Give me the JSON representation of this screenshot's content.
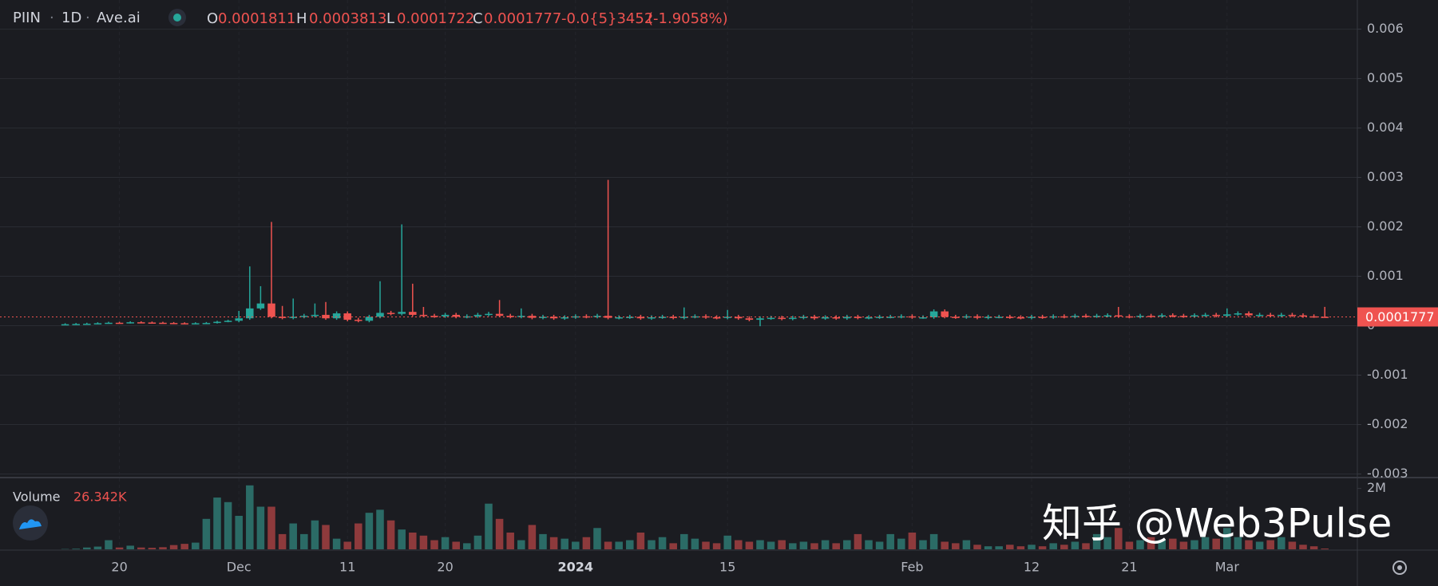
{
  "chart_data": {
    "type": "candlestick",
    "header": {
      "symbol": "PIIN",
      "interval": "1D",
      "source": "Ave.ai",
      "open_label": "O",
      "high_label": "H",
      "low_label": "L",
      "close_label": "C",
      "change": "-0.0{5}3452",
      "change_pct": "(-1.9058%)"
    },
    "up_color": "#26a69a",
    "down_color": "#ef5350",
    "up_volume_color": "#2b6b66",
    "down_volume_color": "#8e3a3c",
    "grid": true,
    "xlim": [
      -6,
      119
    ],
    "xticks": [
      {
        "value": 5,
        "label": "20"
      },
      {
        "value": 16,
        "label": "Dec"
      },
      {
        "value": 26,
        "label": "11"
      },
      {
        "value": 35,
        "label": "20"
      },
      {
        "value": 47,
        "label": "2024"
      },
      {
        "value": 61,
        "label": "15"
      },
      {
        "value": 78,
        "label": "Feb"
      },
      {
        "value": 89,
        "label": "12"
      },
      {
        "value": 98,
        "label": "21"
      },
      {
        "value": 107,
        "label": "Mar"
      }
    ],
    "ylim": [
      -0.00304,
      0.00659
    ],
    "yticks": [
      -0.003,
      -0.002,
      -0.001,
      0,
      0.001,
      0.002,
      0.003,
      0.004,
      0.005,
      0.006
    ],
    "open": [
      2.5e-05,
      3e-05,
      3.5e-05,
      4e-05,
      5e-05,
      6e-05,
      5.5e-05,
      7e-05,
      6.5e-05,
      6e-05,
      5.5e-05,
      5e-05,
      4.5e-05,
      5e-05,
      5.5e-05,
      8e-05,
      0.0001,
      0.00015,
      0.00035,
      0.00045,
      0.00018,
      0.00016,
      0.00018,
      0.0002,
      0.00022,
      0.00015,
      0.00025,
      0.00012,
      0.0001,
      0.00018,
      0.00026,
      0.00024,
      0.00028,
      0.00022,
      0.0002,
      0.00019,
      0.00022,
      0.00018,
      0.00019,
      0.00022,
      0.00024,
      0.0002,
      0.00018,
      0.0002,
      0.00016,
      0.00018,
      0.00015,
      0.00017,
      0.00019,
      0.00018,
      0.0002,
      0.00016,
      0.00017,
      0.00018,
      0.00015,
      0.00017,
      0.00018,
      0.00016,
      0.00018,
      0.00019,
      0.00017,
      0.00016,
      0.00018,
      0.00015,
      0.00012,
      0.00015,
      0.00016,
      0.00014,
      0.00016,
      0.00018,
      0.00015,
      0.00017,
      0.00015,
      0.00018,
      0.00016,
      0.00017,
      0.00018,
      0.00018,
      0.00019,
      0.00017,
      0.00017,
      0.00029,
      0.00018,
      0.00017,
      0.00019,
      0.00016,
      0.00018,
      0.00018,
      0.00017,
      0.00016,
      0.00018,
      0.00017,
      0.00019,
      0.00018,
      0.0002,
      0.00019,
      0.0002,
      0.00021,
      0.00019,
      0.00018,
      0.0002,
      0.00019,
      0.00021,
      0.0002,
      0.00019,
      0.00021,
      0.00022,
      0.0002,
      0.00023,
      0.00025,
      0.00021,
      0.00022,
      0.0002,
      0.00022,
      0.00021,
      0.00019,
      0.0001811
    ],
    "high": [
      5e-05,
      5.5e-05,
      6e-05,
      7e-05,
      8e-05,
      8e-05,
      9e-05,
      9e-05,
      8.5e-05,
      8e-05,
      7.5e-05,
      7e-05,
      7e-05,
      7.5e-05,
      0.0001,
      0.00012,
      0.0003,
      0.0012,
      0.0008,
      0.0021,
      0.0004,
      0.00055,
      0.00024,
      0.00045,
      0.00048,
      0.00029,
      0.00029,
      0.00016,
      0.00022,
      0.0009,
      0.0003,
      0.00205,
      0.00085,
      0.00038,
      0.00024,
      0.00026,
      0.00026,
      0.00023,
      0.00026,
      0.00028,
      0.00052,
      0.00024,
      0.00035,
      0.00024,
      0.00022,
      0.00022,
      0.00021,
      0.00023,
      0.00023,
      0.00024,
      0.00295,
      0.00021,
      0.00022,
      0.00022,
      0.00021,
      0.00022,
      0.00022,
      0.00037,
      0.00023,
      0.00023,
      0.00021,
      0.00032,
      0.00022,
      0.00019,
      0.00019,
      0.0002,
      0.0002,
      0.0002,
      0.00022,
      0.00022,
      0.00021,
      0.00021,
      0.00022,
      0.00022,
      0.00021,
      0.00022,
      0.00022,
      0.00023,
      0.00023,
      0.00021,
      0.00033,
      0.00033,
      0.00022,
      0.00023,
      0.00023,
      0.00022,
      0.00022,
      0.00022,
      0.00021,
      0.00022,
      0.00022,
      0.00023,
      0.00023,
      0.00024,
      0.00024,
      0.00024,
      0.00025,
      0.00038,
      0.00023,
      0.00024,
      0.00024,
      0.00025,
      0.00025,
      0.00024,
      0.00025,
      0.00026,
      0.00026,
      0.00035,
      0.00029,
      0.00029,
      0.00026,
      0.00026,
      0.00026,
      0.00026,
      0.00025,
      0.00023,
      0.0003813
    ],
    "low": [
      1.5e-05,
      2e-05,
      2.5e-05,
      3e-05,
      4e-05,
      4.5e-05,
      4.5e-05,
      5.5e-05,
      5e-05,
      4.5e-05,
      4e-05,
      3.5e-05,
      3.5e-05,
      4e-05,
      4.5e-05,
      7e-05,
      7e-05,
      0.00012,
      0.00032,
      0.00015,
      0.00013,
      0.00013,
      0.00015,
      0.00017,
      0.00012,
      0.00012,
      9e-05,
      7e-05,
      7e-05,
      0.00015,
      0.00021,
      0.00021,
      0.00019,
      0.00017,
      0.00016,
      0.00016,
      0.00015,
      0.00015,
      0.00016,
      0.00019,
      0.00017,
      0.00015,
      0.00015,
      0.00013,
      0.00013,
      0.00012,
      0.00012,
      0.00014,
      0.00015,
      0.00015,
      0.00013,
      0.00013,
      0.00014,
      0.00012,
      0.00012,
      0.00014,
      0.00013,
      0.00013,
      0.00015,
      0.00014,
      0.00013,
      0.00013,
      0.00012,
      9e-05,
      -1e-05,
      0.00012,
      0.00011,
      0.00011,
      0.00013,
      0.00012,
      0.00012,
      0.00012,
      0.00012,
      0.00013,
      0.00013,
      0.00014,
      0.00015,
      0.00015,
      0.00014,
      0.00014,
      0.00014,
      0.00015,
      0.00014,
      0.00014,
      0.00013,
      0.00013,
      0.00015,
      0.00014,
      0.00013,
      0.00013,
      0.00014,
      0.00014,
      0.00015,
      0.00015,
      0.00016,
      0.00016,
      0.00017,
      0.00016,
      0.00015,
      0.00015,
      0.00016,
      0.00016,
      0.00017,
      0.00016,
      0.00016,
      0.00018,
      0.00017,
      0.00017,
      0.0002,
      0.00018,
      0.00018,
      0.00017,
      0.00017,
      0.00018,
      0.00016,
      0.00016,
      0.0001722
    ],
    "close": [
      3e-05,
      3.5e-05,
      4e-05,
      5e-05,
      6e-05,
      5.5e-05,
      7e-05,
      6.5e-05,
      6e-05,
      5.5e-05,
      5e-05,
      4.5e-05,
      5e-05,
      5.5e-05,
      8e-05,
      0.0001,
      0.00015,
      0.00035,
      0.00045,
      0.00018,
      0.00016,
      0.00018,
      0.0002,
      0.00022,
      0.00015,
      0.00025,
      0.00012,
      0.0001,
      0.00018,
      0.00026,
      0.00024,
      0.00028,
      0.00022,
      0.0002,
      0.00019,
      0.00022,
      0.00018,
      0.00019,
      0.00022,
      0.00024,
      0.0002,
      0.00018,
      0.0002,
      0.00016,
      0.00018,
      0.00015,
      0.00017,
      0.00019,
      0.00018,
      0.0002,
      0.00016,
      0.00017,
      0.00018,
      0.00015,
      0.00017,
      0.00018,
      0.00016,
      0.00018,
      0.00019,
      0.00017,
      0.00016,
      0.00018,
      0.00015,
      0.00012,
      0.00015,
      0.00016,
      0.00014,
      0.00016,
      0.00018,
      0.00015,
      0.00017,
      0.00015,
      0.00018,
      0.00016,
      0.00017,
      0.00018,
      0.00018,
      0.00019,
      0.00017,
      0.00017,
      0.00029,
      0.00018,
      0.00017,
      0.00019,
      0.00016,
      0.00018,
      0.00018,
      0.00017,
      0.00016,
      0.00018,
      0.00017,
      0.00019,
      0.00018,
      0.0002,
      0.00019,
      0.0002,
      0.00021,
      0.00019,
      0.00018,
      0.0002,
      0.00019,
      0.00021,
      0.0002,
      0.00019,
      0.00021,
      0.00022,
      0.0002,
      0.00023,
      0.00025,
      0.00021,
      0.00022,
      0.0002,
      0.00022,
      0.00021,
      0.00019,
      0.0001811,
      0.0001777
    ],
    "volume": {
      "label": "Volume",
      "last_label": "26.342K",
      "ylim": [
        0,
        2330000
      ],
      "yticks": [
        {
          "value": 2000000,
          "label": "2M"
        }
      ],
      "values": [
        10000,
        20000,
        60000,
        90000,
        300000,
        60000,
        120000,
        60000,
        50000,
        70000,
        140000,
        180000,
        220000,
        1000000,
        1700000,
        1550000,
        1100000,
        2100000,
        1400000,
        1400000,
        500000,
        850000,
        500000,
        950000,
        800000,
        350000,
        250000,
        850000,
        1200000,
        1300000,
        950000,
        650000,
        550000,
        450000,
        300000,
        400000,
        250000,
        200000,
        450000,
        1500000,
        1000000,
        550000,
        300000,
        800000,
        500000,
        400000,
        350000,
        250000,
        400000,
        700000,
        250000,
        250000,
        300000,
        550000,
        300000,
        400000,
        200000,
        500000,
        350000,
        250000,
        200000,
        450000,
        300000,
        250000,
        300000,
        250000,
        300000,
        200000,
        250000,
        200000,
        300000,
        200000,
        300000,
        500000,
        300000,
        250000,
        500000,
        350000,
        550000,
        300000,
        500000,
        250000,
        200000,
        300000,
        150000,
        100000,
        100000,
        150000,
        100000,
        150000,
        100000,
        200000,
        150000,
        250000,
        200000,
        500000,
        400000,
        700000,
        250000,
        300000,
        400000,
        300000,
        350000,
        250000,
        300000,
        400000,
        350000,
        700000,
        400000,
        300000,
        250000,
        300000,
        400000,
        250000,
        150000,
        100000,
        26342
      ]
    },
    "watermark": "知乎 @Web3Pulse"
  }
}
